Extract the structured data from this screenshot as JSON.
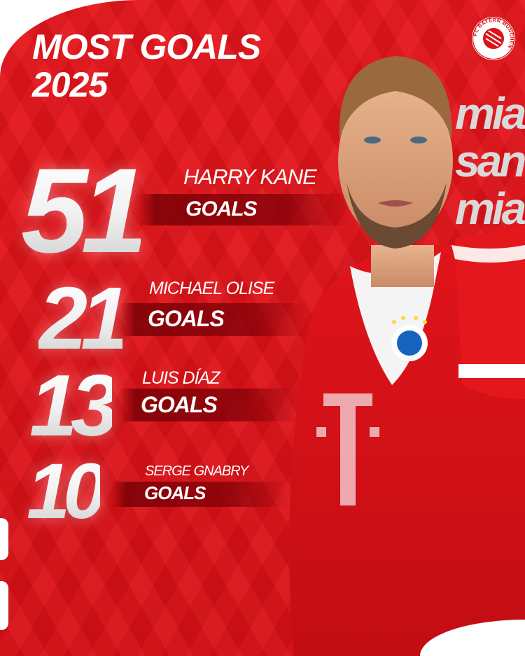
{
  "title": {
    "line1": "MOST GOALS",
    "line2": "2025"
  },
  "club": {
    "name": "FC BAYERN MÜNCHEN",
    "slogan": [
      "mia",
      "san",
      "mia"
    ],
    "primary_color": "#dc1218",
    "bar_color": "#7a0005"
  },
  "sponsor_icon": "telekom-t-logo",
  "scorers": [
    {
      "goals": "51",
      "name": "HARRY KANE",
      "label": "GOALS"
    },
    {
      "goals": "21",
      "name": "MICHAEL OLISE",
      "label": "GOALS"
    },
    {
      "goals": "13",
      "name": "LUIS DÍAZ",
      "label": "GOALS"
    },
    {
      "goals": "10",
      "name": "SERGE GNABRY",
      "label": "GOALS"
    }
  ]
}
